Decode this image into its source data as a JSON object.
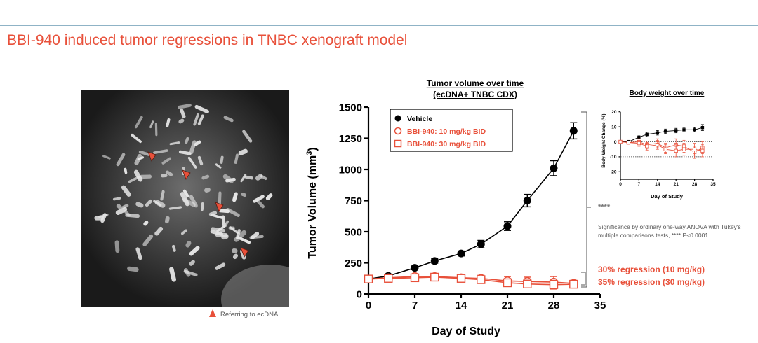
{
  "page_title": "BBI-940 induced tumor regressions in TNBC xenograft model",
  "image_note": "Referring to ecDNA",
  "colors": {
    "accent": "#e8503a",
    "vehicle": "#000000",
    "rule": "#8fb3c6"
  },
  "significance": {
    "stars": "****",
    "text": "Significance by ordinary one-way ANOVA with Tukey's multiple comparisons tests, **** P<0.0001"
  },
  "regressions": [
    "30% regression (10 mg/kg)",
    "35% regression (30 mg/kg)"
  ],
  "chart_data": [
    {
      "type": "line",
      "title": "Tumor volume over time",
      "subtitle": "(ecDNA+ TNBC CDX)",
      "xlabel": "Day of Study",
      "ylabel": "Tumor Volume (mm",
      "ylabel_sup": "3",
      "ylabel_end": ")",
      "xlim": [
        0,
        35
      ],
      "ylim": [
        0,
        1500
      ],
      "xticks": [
        0,
        7,
        14,
        21,
        28,
        35
      ],
      "yticks": [
        0,
        250,
        500,
        750,
        1000,
        1250,
        1500
      ],
      "legend_position": "top-left",
      "series": [
        {
          "name": "Vehicle",
          "marker": "filled-circle",
          "color": "#000000",
          "x": [
            0,
            3,
            7,
            10,
            14,
            17,
            21,
            24,
            28,
            31
          ],
          "y": [
            120,
            145,
            210,
            265,
            325,
            400,
            545,
            750,
            1010,
            1310
          ],
          "err": [
            10,
            12,
            15,
            18,
            20,
            30,
            35,
            50,
            60,
            65
          ]
        },
        {
          "name": "BBI-940: 10 mg/kg BID",
          "marker": "open-circle",
          "color": "#e8503a",
          "x": [
            0,
            3,
            7,
            10,
            14,
            17,
            21,
            24,
            28,
            31
          ],
          "y": [
            120,
            130,
            140,
            140,
            130,
            125,
            105,
            100,
            95,
            85
          ],
          "err": [
            10,
            15,
            18,
            18,
            20,
            25,
            35,
            35,
            45,
            25
          ]
        },
        {
          "name": "BBI-940: 30 mg/kg BID",
          "marker": "open-square",
          "color": "#e8503a",
          "x": [
            0,
            3,
            7,
            10,
            14,
            17,
            21,
            24,
            28,
            31
          ],
          "y": [
            120,
            125,
            130,
            135,
            125,
            115,
            90,
            80,
            75,
            78
          ],
          "err": [
            10,
            12,
            15,
            15,
            20,
            25,
            30,
            30,
            35,
            20
          ]
        }
      ]
    },
    {
      "type": "line",
      "title": "Body weight over time",
      "xlabel": "Day of Study",
      "ylabel": "Body Weight Change (%)",
      "xlim": [
        0,
        35
      ],
      "ylim": [
        -25,
        25
      ],
      "xticks": [
        0,
        7,
        14,
        21,
        28,
        35
      ],
      "yticks": [
        -20,
        -10,
        0,
        10,
        20
      ],
      "reference_lines": [
        0,
        -10
      ],
      "series": [
        {
          "name": "Vehicle",
          "marker": "filled-square",
          "color": "#000000",
          "x": [
            0,
            3,
            7,
            10,
            14,
            17,
            21,
            24,
            28,
            31
          ],
          "y": [
            0,
            0,
            3,
            5,
            6,
            7,
            7.5,
            8,
            8,
            9.5
          ],
          "err": [
            0.5,
            1,
            1,
            1.5,
            1.5,
            1.5,
            1.5,
            1.5,
            1.5,
            2
          ]
        },
        {
          "name": "BBI-940: 10 mg/kg BID",
          "marker": "open-square",
          "color": "#e8503a",
          "x": [
            0,
            3,
            7,
            10,
            14,
            17,
            21,
            24,
            28,
            31
          ],
          "y": [
            0,
            -0.5,
            0,
            -2,
            -1,
            -4,
            -2,
            -3,
            -7,
            -4
          ],
          "err": [
            0.5,
            1,
            2,
            2.5,
            3,
            3,
            4,
            4,
            4,
            4
          ]
        },
        {
          "name": "BBI-940: 30 mg/kg BID",
          "marker": "open-square",
          "color": "#e8503a",
          "x": [
            0,
            3,
            7,
            10,
            14,
            17,
            21,
            24,
            28,
            31
          ],
          "y": [
            0,
            -0.5,
            -1,
            -3,
            -2,
            -5,
            -6,
            -5,
            -5,
            -6
          ],
          "err": [
            0.5,
            1,
            2,
            2.5,
            3,
            3,
            4,
            4,
            4,
            4
          ]
        }
      ]
    }
  ]
}
